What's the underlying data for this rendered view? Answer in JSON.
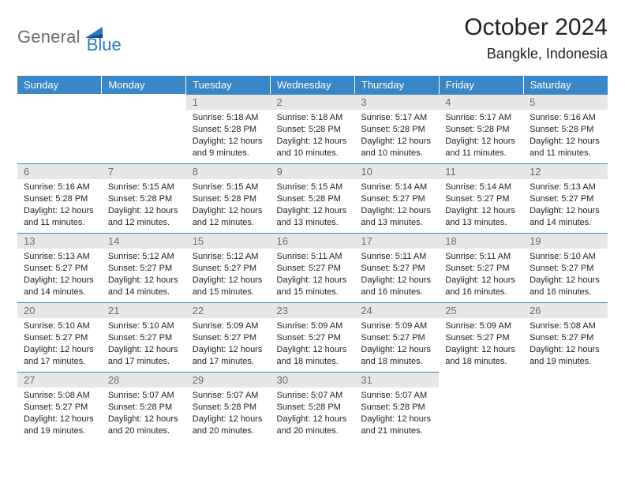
{
  "logo": {
    "textA": "General",
    "textB": "Blue"
  },
  "title": "October 2024",
  "location": "Bangkle, Indonesia",
  "colors": {
    "header_bg": "#3a87c7",
    "header_text": "#ffffff",
    "daynum_bg": "#e7e7e7",
    "daynum_text": "#6d6d6d",
    "row_border": "#3a87c7",
    "logo_blue": "#2b78c2",
    "logo_grey": "#6d6d6d",
    "body_text": "#222222",
    "background": "#ffffff"
  },
  "typography": {
    "title_fontsize": 30,
    "location_fontsize": 18,
    "header_fontsize": 13,
    "daynum_fontsize": 13,
    "cell_fontsize": 11,
    "logo_fontsize": 22
  },
  "columns": [
    "Sunday",
    "Monday",
    "Tuesday",
    "Wednesday",
    "Thursday",
    "Friday",
    "Saturday"
  ],
  "weeks": [
    [
      null,
      null,
      {
        "n": "1",
        "sr": "5:18 AM",
        "ss": "5:28 PM",
        "dl": "12 hours and 9 minutes."
      },
      {
        "n": "2",
        "sr": "5:18 AM",
        "ss": "5:28 PM",
        "dl": "12 hours and 10 minutes."
      },
      {
        "n": "3",
        "sr": "5:17 AM",
        "ss": "5:28 PM",
        "dl": "12 hours and 10 minutes."
      },
      {
        "n": "4",
        "sr": "5:17 AM",
        "ss": "5:28 PM",
        "dl": "12 hours and 11 minutes."
      },
      {
        "n": "5",
        "sr": "5:16 AM",
        "ss": "5:28 PM",
        "dl": "12 hours and 11 minutes."
      }
    ],
    [
      {
        "n": "6",
        "sr": "5:16 AM",
        "ss": "5:28 PM",
        "dl": "12 hours and 11 minutes."
      },
      {
        "n": "7",
        "sr": "5:15 AM",
        "ss": "5:28 PM",
        "dl": "12 hours and 12 minutes."
      },
      {
        "n": "8",
        "sr": "5:15 AM",
        "ss": "5:28 PM",
        "dl": "12 hours and 12 minutes."
      },
      {
        "n": "9",
        "sr": "5:15 AM",
        "ss": "5:28 PM",
        "dl": "12 hours and 13 minutes."
      },
      {
        "n": "10",
        "sr": "5:14 AM",
        "ss": "5:27 PM",
        "dl": "12 hours and 13 minutes."
      },
      {
        "n": "11",
        "sr": "5:14 AM",
        "ss": "5:27 PM",
        "dl": "12 hours and 13 minutes."
      },
      {
        "n": "12",
        "sr": "5:13 AM",
        "ss": "5:27 PM",
        "dl": "12 hours and 14 minutes."
      }
    ],
    [
      {
        "n": "13",
        "sr": "5:13 AM",
        "ss": "5:27 PM",
        "dl": "12 hours and 14 minutes."
      },
      {
        "n": "14",
        "sr": "5:12 AM",
        "ss": "5:27 PM",
        "dl": "12 hours and 14 minutes."
      },
      {
        "n": "15",
        "sr": "5:12 AM",
        "ss": "5:27 PM",
        "dl": "12 hours and 15 minutes."
      },
      {
        "n": "16",
        "sr": "5:11 AM",
        "ss": "5:27 PM",
        "dl": "12 hours and 15 minutes."
      },
      {
        "n": "17",
        "sr": "5:11 AM",
        "ss": "5:27 PM",
        "dl": "12 hours and 16 minutes."
      },
      {
        "n": "18",
        "sr": "5:11 AM",
        "ss": "5:27 PM",
        "dl": "12 hours and 16 minutes."
      },
      {
        "n": "19",
        "sr": "5:10 AM",
        "ss": "5:27 PM",
        "dl": "12 hours and 16 minutes."
      }
    ],
    [
      {
        "n": "20",
        "sr": "5:10 AM",
        "ss": "5:27 PM",
        "dl": "12 hours and 17 minutes."
      },
      {
        "n": "21",
        "sr": "5:10 AM",
        "ss": "5:27 PM",
        "dl": "12 hours and 17 minutes."
      },
      {
        "n": "22",
        "sr": "5:09 AM",
        "ss": "5:27 PM",
        "dl": "12 hours and 17 minutes."
      },
      {
        "n": "23",
        "sr": "5:09 AM",
        "ss": "5:27 PM",
        "dl": "12 hours and 18 minutes."
      },
      {
        "n": "24",
        "sr": "5:09 AM",
        "ss": "5:27 PM",
        "dl": "12 hours and 18 minutes."
      },
      {
        "n": "25",
        "sr": "5:09 AM",
        "ss": "5:27 PM",
        "dl": "12 hours and 18 minutes."
      },
      {
        "n": "26",
        "sr": "5:08 AM",
        "ss": "5:27 PM",
        "dl": "12 hours and 19 minutes."
      }
    ],
    [
      {
        "n": "27",
        "sr": "5:08 AM",
        "ss": "5:27 PM",
        "dl": "12 hours and 19 minutes."
      },
      {
        "n": "28",
        "sr": "5:07 AM",
        "ss": "5:28 PM",
        "dl": "12 hours and 20 minutes."
      },
      {
        "n": "29",
        "sr": "5:07 AM",
        "ss": "5:28 PM",
        "dl": "12 hours and 20 minutes."
      },
      {
        "n": "30",
        "sr": "5:07 AM",
        "ss": "5:28 PM",
        "dl": "12 hours and 20 minutes."
      },
      {
        "n": "31",
        "sr": "5:07 AM",
        "ss": "5:28 PM",
        "dl": "12 hours and 21 minutes."
      },
      null,
      null
    ]
  ],
  "labels": {
    "sunrise": "Sunrise: ",
    "sunset": "Sunset: ",
    "daylight": "Daylight: "
  }
}
